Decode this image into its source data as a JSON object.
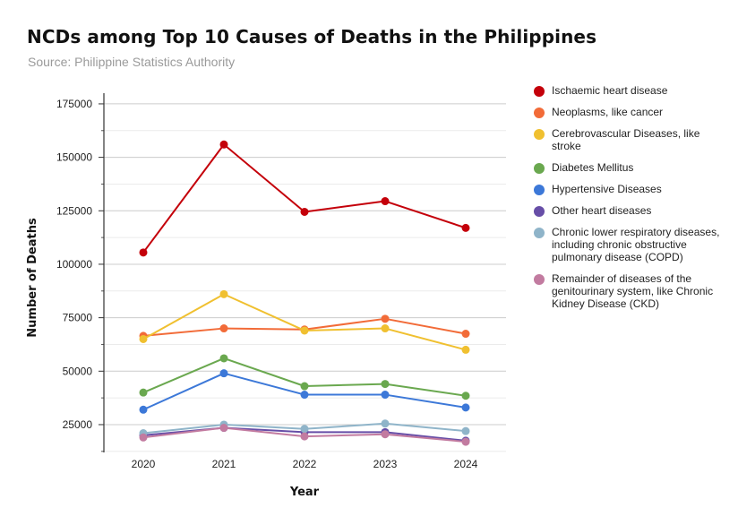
{
  "title": "NCDs among Top 10 Causes of Deaths in the Philippines",
  "subtitle": "Source: Philippine Statistics Authority",
  "chart_data": {
    "type": "line",
    "title": "NCDs among Top 10 Causes of Deaths in the Philippines",
    "subtitle": "Source: Philippine Statistics Authority",
    "xlabel": "Year",
    "ylabel": "Number of Deaths",
    "categories": [
      "2020",
      "2021",
      "2022",
      "2023",
      "2024"
    ],
    "yticks": [
      25000,
      50000,
      75000,
      100000,
      125000,
      150000,
      175000
    ],
    "ylim": [
      12000,
      180000
    ],
    "grid": true,
    "legend_position": "right",
    "series": [
      {
        "name": "Ischaemic heart disease",
        "color": "#c4000a",
        "values": [
          105500,
          156000,
          124500,
          129500,
          117000
        ]
      },
      {
        "name": "Neoplasms, like cancer",
        "color": "#f26b38",
        "values": [
          66500,
          70000,
          69500,
          74500,
          67500
        ]
      },
      {
        "name": "Cerebrovascular Diseases, like stroke",
        "color": "#f0c030",
        "values": [
          65000,
          86000,
          69000,
          70000,
          60000
        ]
      },
      {
        "name": "Diabetes Mellitus",
        "color": "#6aa84f",
        "values": [
          40000,
          56000,
          43000,
          44000,
          38500
        ]
      },
      {
        "name": "Hypertensive Diseases",
        "color": "#3c78d8",
        "values": [
          32000,
          49000,
          39000,
          39000,
          33000
        ]
      },
      {
        "name": "Other heart diseases",
        "color": "#674ea7",
        "values": [
          20000,
          23500,
          21500,
          21500,
          17500
        ]
      },
      {
        "name": "Chronic lower respiratory diseases, including chronic obstructive pulmonary disease (COPD)",
        "color": "#8fb4c9",
        "values": [
          21000,
          25000,
          23000,
          25500,
          22000
        ]
      },
      {
        "name": "Remainder of diseases of the genitourinary system, like Chronic Kidney Disease (CKD)",
        "color": "#c27ba0",
        "values": [
          19000,
          23500,
          19500,
          20500,
          17000
        ]
      }
    ]
  }
}
